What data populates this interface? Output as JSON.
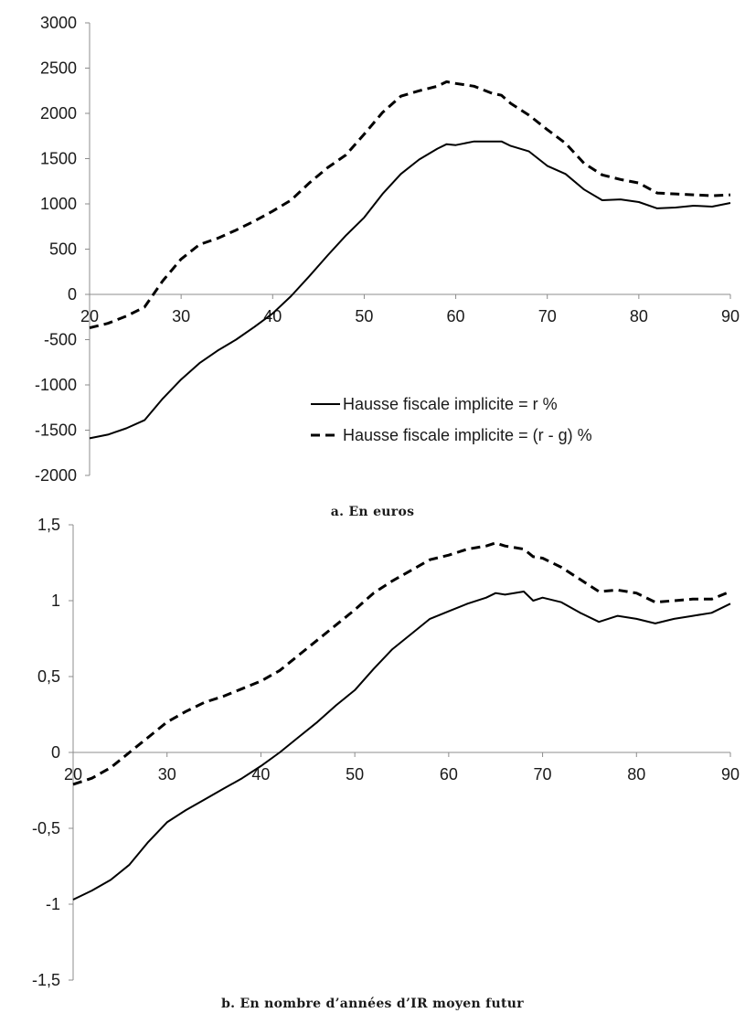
{
  "chart_data": [
    {
      "type": "line",
      "caption": "a. En euros",
      "x_ticks": [
        20,
        30,
        40,
        50,
        60,
        70,
        80,
        90
      ],
      "y_ticks": [
        "3000",
        "2500",
        "2000",
        "1500",
        "1000",
        "500",
        "0",
        "-500",
        "-1000",
        "-1500",
        "-2000"
      ],
      "xlim": [
        20,
        90
      ],
      "ylim": [
        -2000,
        3000
      ],
      "grid": false,
      "legend_position": "lower-right",
      "x": [
        20,
        22,
        24,
        26,
        28,
        30,
        32,
        34,
        36,
        38,
        40,
        42,
        44,
        46,
        48,
        50,
        52,
        54,
        56,
        58,
        59,
        60,
        62,
        64,
        65,
        66,
        68,
        70,
        72,
        74,
        76,
        78,
        80,
        82,
        84,
        86,
        88,
        90
      ],
      "series": [
        {
          "name": "Hausse fiscale implicite = r %",
          "style": "solid",
          "values": [
            -1590,
            -1550,
            -1480,
            -1390,
            -1150,
            -940,
            -760,
            -620,
            -500,
            -360,
            -210,
            -20,
            200,
            430,
            650,
            850,
            1110,
            1330,
            1490,
            1610,
            1660,
            1650,
            1690,
            1690,
            1690,
            1640,
            1580,
            1420,
            1330,
            1160,
            1040,
            1050,
            1020,
            950,
            960,
            980,
            970,
            1010
          ]
        },
        {
          "name": "Hausse fiscale implicite = (r - g) %",
          "style": "dashed",
          "values": [
            -370,
            -320,
            -240,
            -140,
            150,
            390,
            550,
            620,
            710,
            810,
            920,
            1040,
            1230,
            1400,
            1540,
            1770,
            2010,
            2190,
            2250,
            2300,
            2350,
            2330,
            2300,
            2220,
            2200,
            2110,
            1980,
            1820,
            1670,
            1450,
            1320,
            1270,
            1230,
            1120,
            1110,
            1100,
            1090,
            1100
          ]
        }
      ]
    },
    {
      "type": "line",
      "caption": "b. En nombre d’années d’IR moyen futur",
      "x_ticks": [
        20,
        30,
        40,
        50,
        60,
        70,
        80,
        90
      ],
      "y_ticks": [
        "1,5",
        "1",
        "0,5",
        "0",
        "-0,5",
        "-1",
        "-1,5"
      ],
      "xlim": [
        20,
        90
      ],
      "ylim": [
        -1.5,
        1.5
      ],
      "grid": false,
      "legend_position": "none",
      "x": [
        20,
        22,
        24,
        26,
        28,
        30,
        32,
        34,
        36,
        38,
        40,
        42,
        44,
        46,
        48,
        50,
        52,
        54,
        56,
        58,
        60,
        62,
        64,
        65,
        66,
        68,
        69,
        70,
        72,
        74,
        76,
        78,
        80,
        82,
        84,
        86,
        88,
        90
      ],
      "series": [
        {
          "name": "Hausse fiscale implicite = r %",
          "style": "solid",
          "values": [
            -0.97,
            -0.91,
            -0.84,
            -0.74,
            -0.59,
            -0.46,
            -0.38,
            -0.31,
            -0.24,
            -0.17,
            -0.09,
            0.0,
            0.1,
            0.2,
            0.31,
            0.41,
            0.55,
            0.68,
            0.78,
            0.88,
            0.93,
            0.98,
            1.02,
            1.05,
            1.04,
            1.06,
            1.0,
            1.02,
            0.99,
            0.92,
            0.86,
            0.9,
            0.88,
            0.85,
            0.88,
            0.9,
            0.92,
            0.98
          ]
        },
        {
          "name": "Hausse fiscale implicite = (r - g) %",
          "style": "dashed",
          "values": [
            -0.21,
            -0.17,
            -0.1,
            0.0,
            0.1,
            0.2,
            0.27,
            0.33,
            0.37,
            0.42,
            0.47,
            0.54,
            0.64,
            0.74,
            0.84,
            0.94,
            1.05,
            1.13,
            1.2,
            1.27,
            1.3,
            1.34,
            1.36,
            1.38,
            1.36,
            1.34,
            1.29,
            1.28,
            1.22,
            1.14,
            1.06,
            1.07,
            1.05,
            0.99,
            1.0,
            1.01,
            1.01,
            1.06
          ]
        }
      ]
    }
  ]
}
